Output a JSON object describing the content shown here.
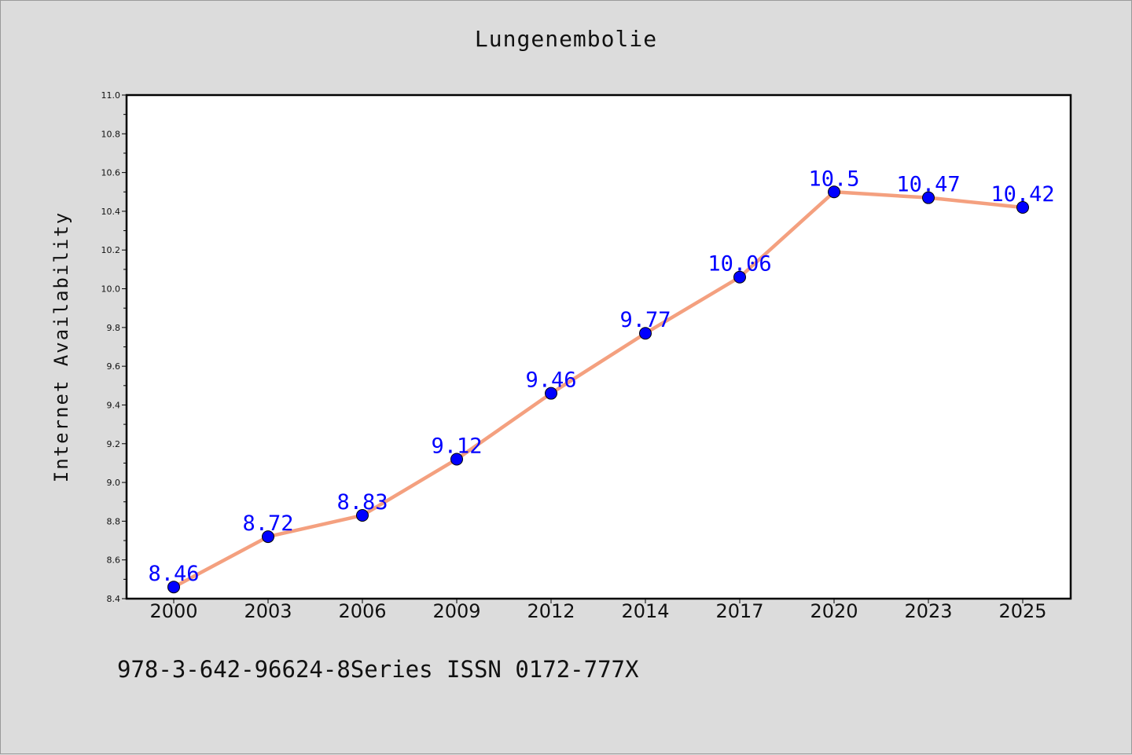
{
  "title": "Lungenembolie",
  "footer": "978-3-642-96624-8Series ISSN 0172-777X",
  "colors": {
    "line": "#f4a07f",
    "marker": "#0000ff",
    "label": "#0000ff",
    "background": "#dcdcdc",
    "plot_background": "#ffffff"
  },
  "chart_data": {
    "type": "line",
    "title": "Lungenembolie",
    "xlabel": "",
    "ylabel": "Internet Availability",
    "categories": [
      "2000",
      "2003",
      "2006",
      "2009",
      "2012",
      "2014",
      "2017",
      "2020",
      "2023",
      "2025"
    ],
    "series": [
      {
        "values": [
          8.46,
          8.72,
          8.83,
          9.12,
          9.46,
          9.77,
          10.06,
          10.5,
          10.47,
          10.42
        ]
      }
    ],
    "data_labels": [
      "8.46",
      "8.72",
      "8.83",
      "9.12",
      "9.46",
      "9.77",
      "10.06",
      "10.5",
      "10.47",
      "10.42"
    ],
    "ylim": [
      8.4,
      11.0
    ],
    "yticks": [
      "8.4",
      "8.6",
      "8.8",
      "9.0",
      "9.2",
      "9.4",
      "9.6",
      "9.8",
      "10.0",
      "10.2",
      "10.4",
      "10.6",
      "10.8",
      "11.0"
    ],
    "grid": false,
    "legend": "none"
  }
}
